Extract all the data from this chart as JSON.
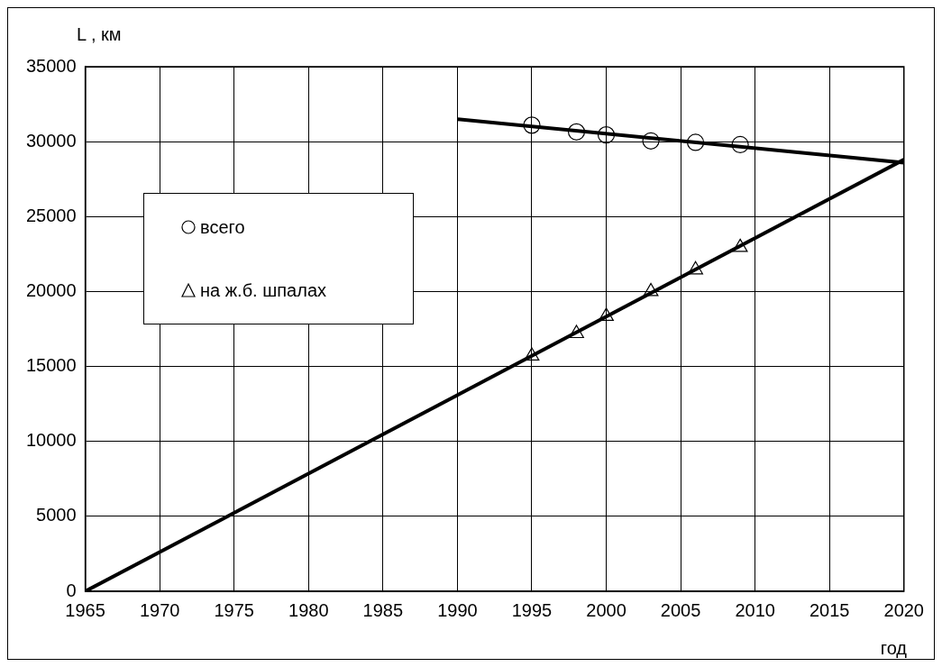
{
  "chart_data": {
    "type": "scatter",
    "ylabel": "L , км",
    "xlabel": "год",
    "xlim": [
      1965,
      2020
    ],
    "xticks": [
      1965,
      1970,
      1975,
      1980,
      1985,
      1990,
      1995,
      2000,
      2005,
      2010,
      2015,
      2020
    ],
    "ylim": [
      0,
      35000
    ],
    "yticks": [
      0,
      5000,
      10000,
      15000,
      20000,
      25000,
      30000,
      35000
    ],
    "grid": true,
    "legend": "left",
    "series": [
      {
        "name": "всего",
        "type": "scatter",
        "marker": "circle",
        "color": "#000000",
        "x": [
          1995,
          1998,
          2000,
          2003,
          2006,
          2009
        ],
        "values": [
          31100,
          30650,
          30450,
          30050,
          29950,
          29800
        ]
      },
      {
        "name": "на ж.б. шпалах",
        "type": "scatter",
        "marker": "triangle",
        "color": "#000000",
        "x": [
          1995,
          1998,
          2000,
          2003,
          2006,
          2009
        ],
        "values": [
          15700,
          17200,
          18350,
          20000,
          21450,
          22950
        ]
      },
      {
        "type": "line",
        "marker": "none",
        "color": "#000000",
        "x": [
          1990,
          2020
        ],
        "values": [
          31500,
          28600
        ]
      },
      {
        "type": "line",
        "marker": "none",
        "color": "#000000",
        "x": [
          1965,
          2020
        ],
        "values": [
          0,
          28800
        ]
      }
    ]
  }
}
